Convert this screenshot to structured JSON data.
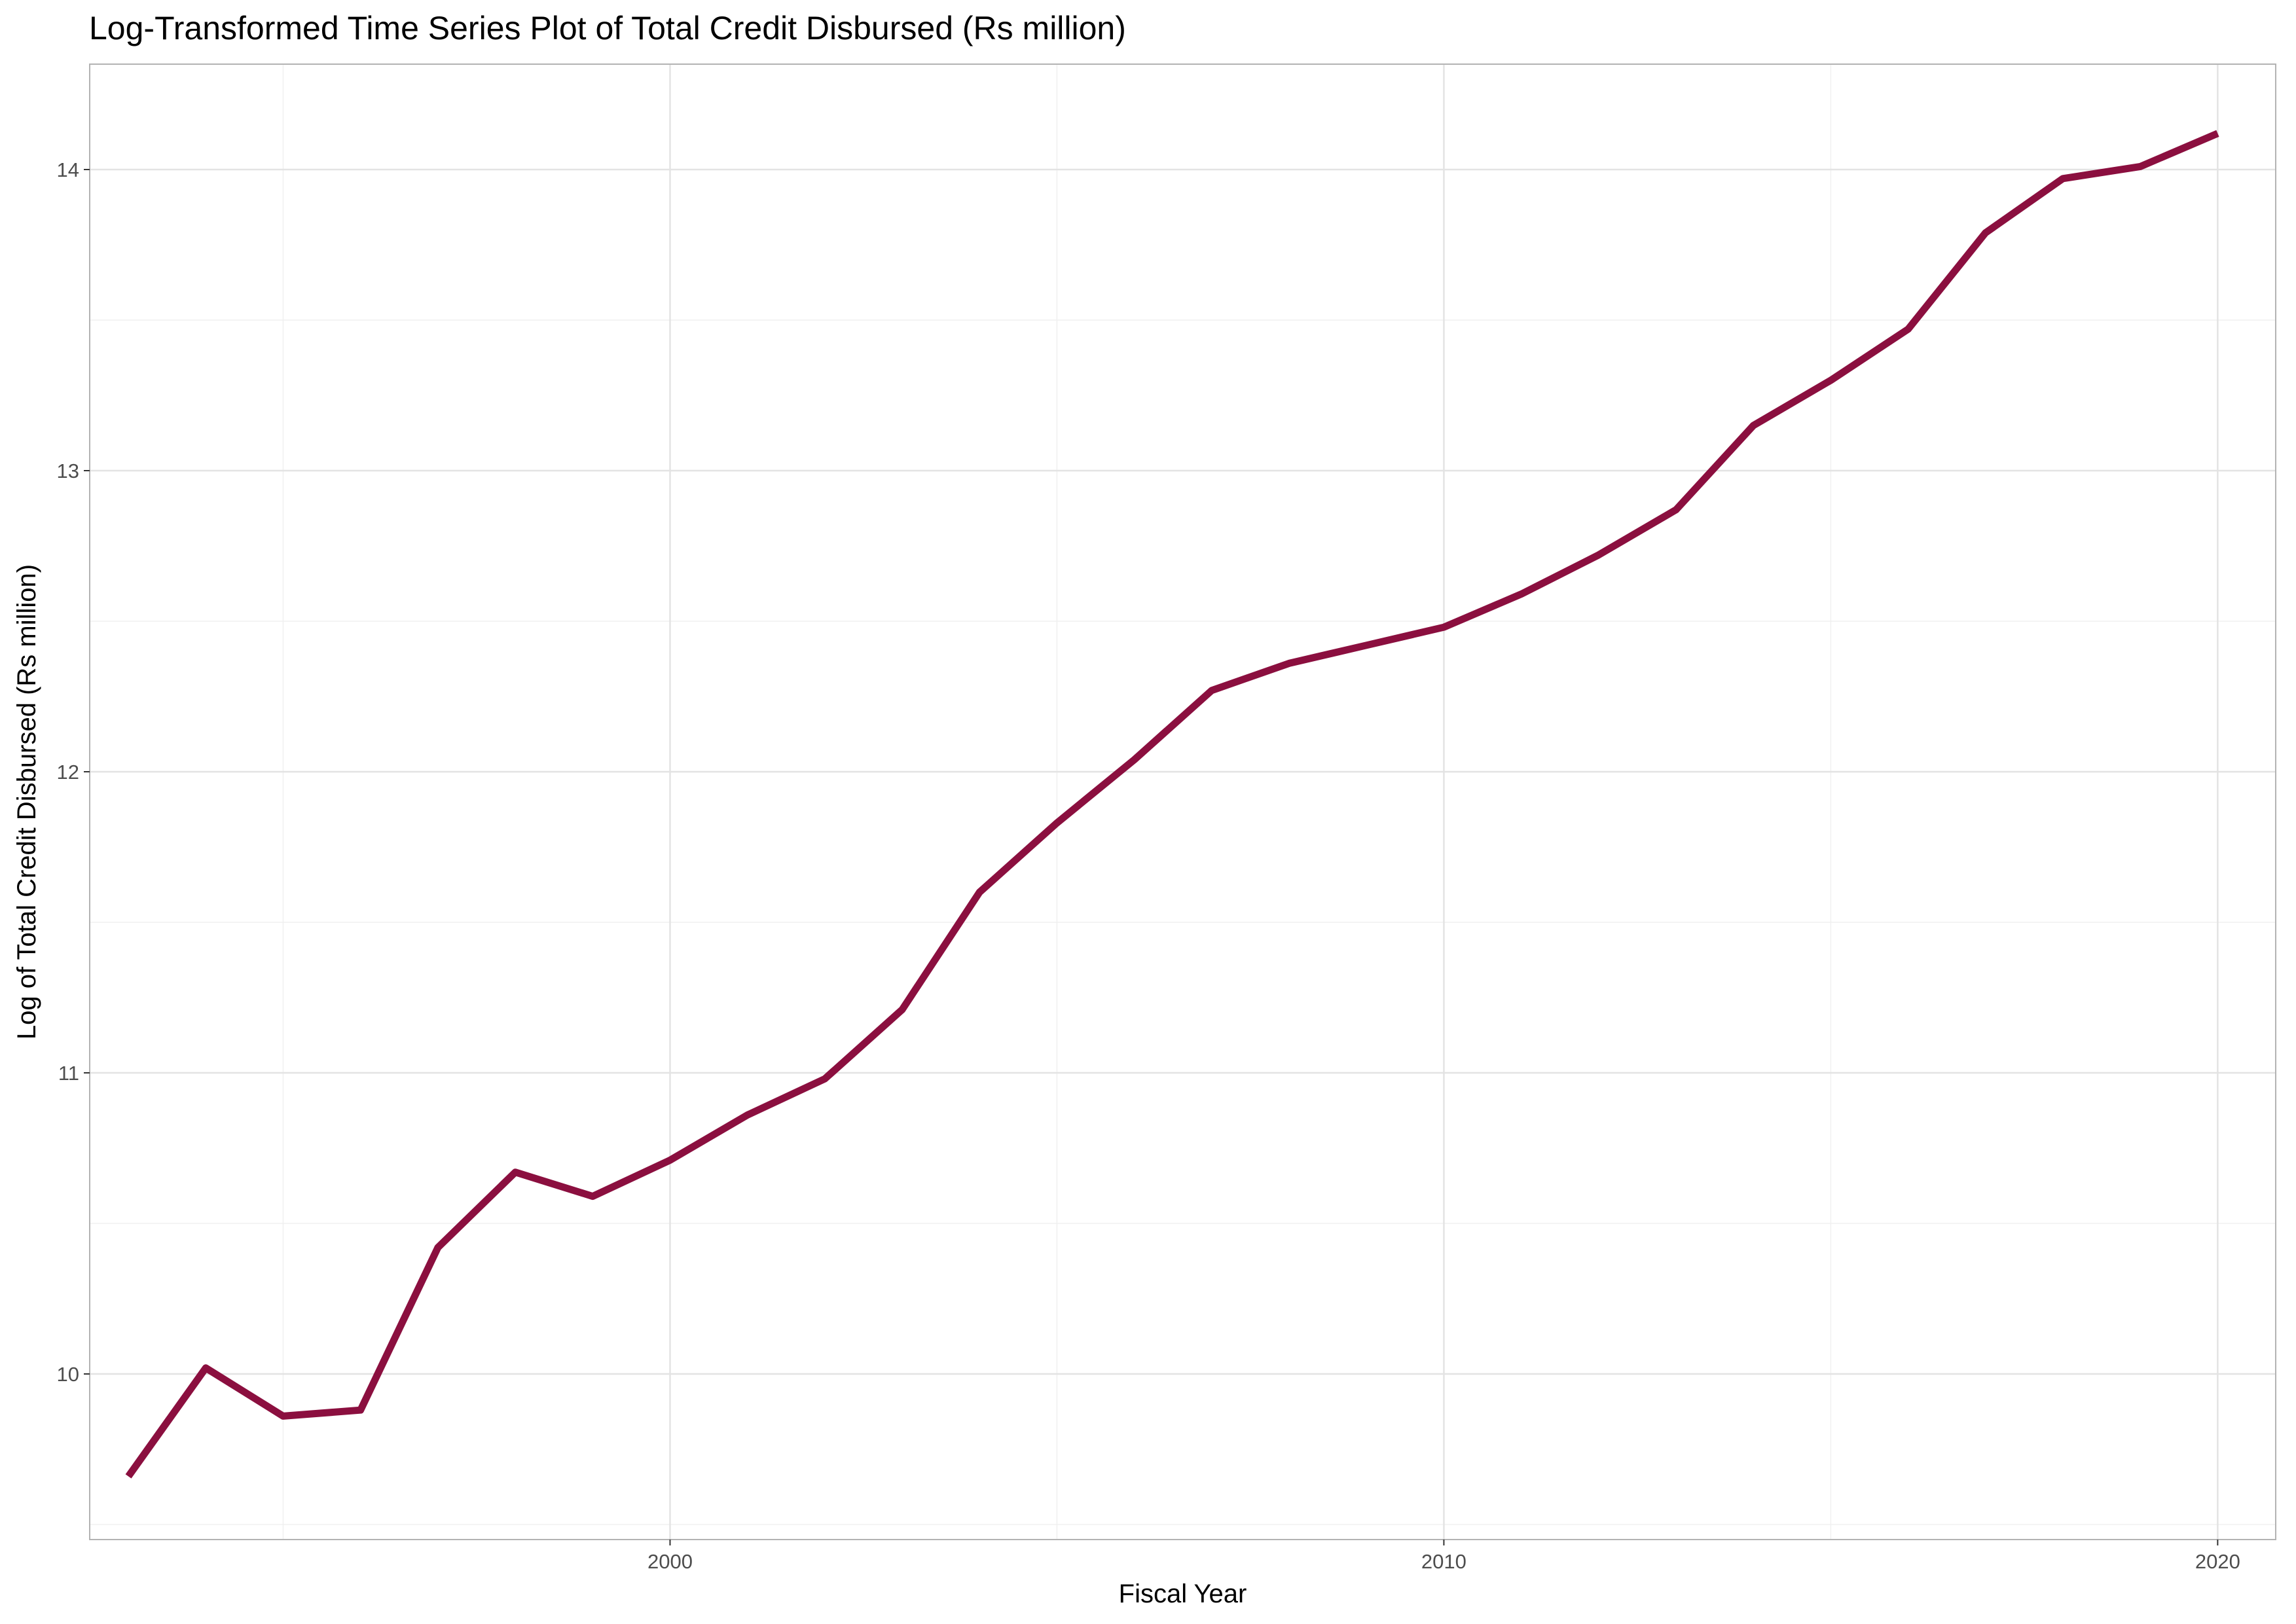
{
  "chart_data": {
    "type": "line",
    "title": "Log-Transformed Time Series Plot of Total Credit Disbursed (Rs million)",
    "xlabel": "Fiscal Year",
    "ylabel": "Log of Total Credit Disbursed (Rs million)",
    "xlim": [
      1992.5,
      2020.75
    ],
    "ylim": [
      9.45,
      14.35
    ],
    "x_ticks": [
      2000,
      2010,
      2020
    ],
    "x_tick_labels": [
      "2000",
      "2010",
      "2020"
    ],
    "x_minor_gridlines": [
      1995,
      2005,
      2015
    ],
    "y_ticks": [
      10,
      11,
      12,
      13,
      14
    ],
    "y_tick_labels": [
      "10",
      "11",
      "12",
      "13",
      "14"
    ],
    "y_minor_gridlines": [
      9.5,
      10.5,
      11.5,
      12.5,
      13.5
    ],
    "grid": true,
    "legend": "none",
    "series": [
      {
        "color": "#8B0F3F",
        "x": [
          1993,
          1994,
          1995,
          1996,
          1997,
          1998,
          1999,
          2000,
          2001,
          2002,
          2003,
          2004,
          2005,
          2006,
          2007,
          2008,
          2009,
          2010,
          2011,
          2012,
          2013,
          2014,
          2015,
          2016,
          2017,
          2018,
          2019,
          2020
        ],
        "y": [
          9.66,
          10.02,
          9.86,
          9.88,
          10.42,
          10.67,
          10.59,
          10.71,
          10.86,
          10.98,
          11.21,
          11.6,
          11.83,
          12.04,
          12.27,
          12.36,
          12.42,
          12.48,
          12.59,
          12.72,
          12.87,
          13.15,
          13.3,
          13.47,
          13.79,
          13.97,
          14.01,
          14.12
        ]
      }
    ]
  }
}
